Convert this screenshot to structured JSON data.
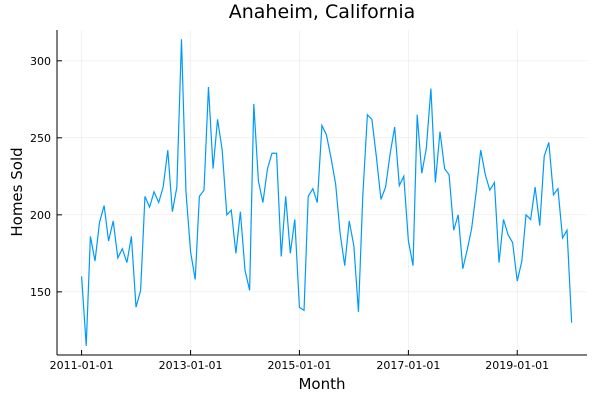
{
  "chart_data": {
    "type": "line",
    "title": "Anaheim, California",
    "xlabel": "Month",
    "ylabel": "Homes Sold",
    "x": [
      "2011-01-01",
      "2011-02-01",
      "2011-03-01",
      "2011-04-01",
      "2011-05-01",
      "2011-06-01",
      "2011-07-01",
      "2011-08-01",
      "2011-09-01",
      "2011-10-01",
      "2011-11-01",
      "2011-12-01",
      "2012-01-01",
      "2012-02-01",
      "2012-03-01",
      "2012-04-01",
      "2012-05-01",
      "2012-06-01",
      "2012-07-01",
      "2012-08-01",
      "2012-09-01",
      "2012-10-01",
      "2012-11-01",
      "2012-12-01",
      "2013-01-01",
      "2013-02-01",
      "2013-03-01",
      "2013-04-01",
      "2013-05-01",
      "2013-06-01",
      "2013-07-01",
      "2013-08-01",
      "2013-09-01",
      "2013-10-01",
      "2013-11-01",
      "2013-12-01",
      "2014-01-01",
      "2014-02-01",
      "2014-03-01",
      "2014-04-01",
      "2014-05-01",
      "2014-06-01",
      "2014-07-01",
      "2014-08-01",
      "2014-09-01",
      "2014-10-01",
      "2014-11-01",
      "2014-12-01",
      "2015-01-01",
      "2015-02-01",
      "2015-03-01",
      "2015-04-01",
      "2015-05-01",
      "2015-06-01",
      "2015-07-01",
      "2015-08-01",
      "2015-09-01",
      "2015-10-01",
      "2015-11-01",
      "2015-12-01",
      "2016-01-01",
      "2016-02-01",
      "2016-03-01",
      "2016-04-01",
      "2016-05-01",
      "2016-06-01",
      "2016-07-01",
      "2016-08-01",
      "2016-09-01",
      "2016-10-01",
      "2016-11-01",
      "2016-12-01",
      "2017-01-01",
      "2017-02-01",
      "2017-03-01",
      "2017-04-01",
      "2017-05-01",
      "2017-06-01",
      "2017-07-01",
      "2017-08-01",
      "2017-09-01",
      "2017-10-01",
      "2017-11-01",
      "2017-12-01",
      "2018-01-01",
      "2018-02-01",
      "2018-03-01",
      "2018-04-01",
      "2018-05-01",
      "2018-06-01",
      "2018-07-01",
      "2018-08-01",
      "2018-09-01",
      "2018-10-01",
      "2018-11-01",
      "2018-12-01",
      "2019-01-01",
      "2019-02-01",
      "2019-03-01",
      "2019-04-01",
      "2019-05-01",
      "2019-06-01",
      "2019-07-01",
      "2019-08-01",
      "2019-09-01",
      "2019-10-01",
      "2019-11-01",
      "2019-12-01",
      "2020-01-01"
    ],
    "series": [
      {
        "name": "Homes Sold",
        "color": "#009af9",
        "values": [
          160,
          115,
          186,
          170,
          195,
          206,
          183,
          196,
          172,
          178,
          169,
          186,
          140,
          151,
          212,
          205,
          215,
          208,
          218,
          242,
          202,
          218,
          314,
          215,
          176,
          158,
          212,
          216,
          283,
          230,
          262,
          242,
          200,
          203,
          175,
          202,
          164,
          151,
          272,
          222,
          208,
          230,
          240,
          240,
          173,
          212,
          175,
          197,
          140,
          138,
          212,
          217,
          208,
          258,
          252,
          237,
          220,
          188,
          167,
          196,
          180,
          137,
          212,
          265,
          262,
          237,
          210,
          218,
          240,
          257,
          219,
          225,
          183,
          167,
          265,
          227,
          243,
          282,
          221,
          254,
          230,
          226,
          190,
          200,
          165,
          178,
          191,
          215,
          242,
          226,
          216,
          221,
          169,
          197,
          187,
          182,
          157,
          170,
          200,
          197,
          218,
          193,
          238,
          247,
          213,
          217,
          185,
          190,
          130
        ]
      }
    ],
    "xlim": [
      "2010-07-20",
      "2020-04-13"
    ],
    "xticks": [
      "2011-01-01",
      "2013-01-01",
      "2015-01-01",
      "2017-01-01",
      "2019-01-01"
    ],
    "ylim": [
      109,
      320
    ],
    "yticks": [
      150,
      200,
      250,
      300
    ],
    "grid": true
  }
}
